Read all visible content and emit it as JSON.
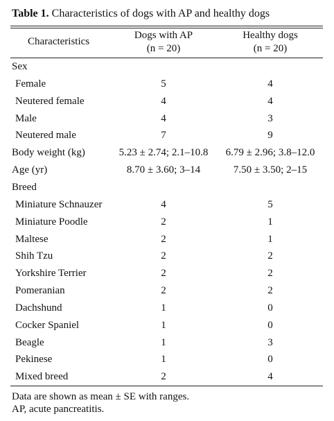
{
  "title": {
    "label": "Table 1.",
    "text": "Characteristics of dogs with AP and healthy dogs"
  },
  "table": {
    "header": [
      [
        "Characteristics"
      ],
      [
        "Dogs with AP",
        "(n = 20)"
      ],
      [
        "Healthy dogs",
        "(n = 20)"
      ]
    ],
    "body": [
      {
        "heading": "Sex",
        "rows": [
          [
            "Female",
            5,
            4
          ],
          [
            "Neutered female",
            4,
            4
          ],
          [
            "Male",
            4,
            3
          ],
          [
            "Neutered male",
            7,
            9
          ]
        ]
      },
      [
        "Body weight (kg)",
        "5.23 ± 2.74; 2.1–10.8",
        "6.79 ± 2.96; 3.8–12.0"
      ],
      [
        "Age (yr)",
        "8.70 ± 3.60; 3–14",
        "7.50 ± 3.50; 2–15"
      ],
      {
        "heading": "Breed",
        "rows": [
          [
            "Miniature Schnauzer",
            4,
            5
          ],
          [
            "Miniature Poodle",
            2,
            1
          ],
          [
            "Maltese",
            2,
            1
          ],
          [
            "Shih Tzu",
            2,
            2
          ],
          [
            "Yorkshire Terrier",
            2,
            2
          ],
          [
            "Pomeranian",
            2,
            2
          ],
          [
            "Dachshund",
            1,
            0
          ],
          [
            "Cocker Spaniel",
            1,
            0
          ],
          [
            "Beagle",
            1,
            3
          ],
          [
            "Pekinese",
            1,
            0
          ],
          [
            "Mixed breed",
            2,
            4
          ]
        ]
      }
    ]
  },
  "notes": [
    "Data are shown as mean ± SE with ranges.",
    "AP, acute pancreatitis."
  ]
}
